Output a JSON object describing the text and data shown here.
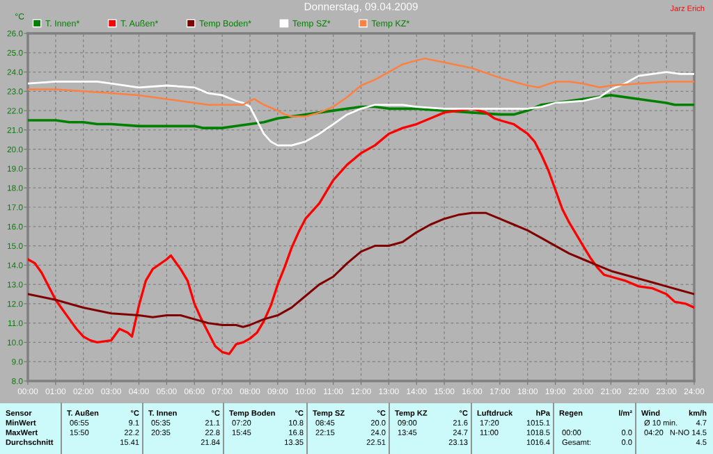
{
  "chart_data": {
    "type": "line",
    "title": "Donnerstag, 09.04.2009",
    "ylabel": "°C",
    "annotations": [
      "Jarz Erich",
      "Sensor",
      "MinWert",
      "MaxWert",
      "Durchschnitt",
      "T. Außen",
      "°C",
      "06:55",
      "9.1",
      "15:50",
      "22.2",
      "15.41",
      "T. Innen",
      "°C",
      "05:35",
      "21.1",
      "20:35",
      "22.8",
      "21.84",
      "Temp Boden",
      "°C",
      "07:20",
      "10.8",
      "15:45",
      "16.8",
      "13.35",
      "Temp SZ",
      "°C",
      "08:45",
      "20.0",
      "22:15",
      "24.0",
      "22.51",
      "Temp KZ",
      "°C",
      "09:00",
      "21.6",
      "13:45",
      "24.7",
      "23.13",
      "Luftdruck",
      "hPa",
      "17:20",
      "1015.1",
      "11:00",
      "1018.5",
      "1016.4",
      "Regen",
      "l/m²",
      "00:00",
      "0.0",
      "Gesamt:",
      "0.0",
      "Wind",
      "km/h",
      "Ø 10 min.",
      "4.7",
      "04:20",
      "N-NO 14.5",
      "4.5"
    ],
    "xlim": [
      0,
      24
    ],
    "xticks": [
      {
        "value": 0,
        "label": "00:00"
      },
      {
        "value": 1,
        "label": "01:00"
      },
      {
        "value": 2,
        "label": "02:00"
      },
      {
        "value": 3,
        "label": "03:00"
      },
      {
        "value": 4,
        "label": "04:00"
      },
      {
        "value": 5,
        "label": "05:00"
      },
      {
        "value": 6,
        "label": "06:00"
      },
      {
        "value": 7,
        "label": "07:00"
      },
      {
        "value": 8,
        "label": "08:00"
      },
      {
        "value": 9,
        "label": "09:00"
      },
      {
        "value": 10,
        "label": "10:00"
      },
      {
        "value": 11,
        "label": "11:00"
      },
      {
        "value": 12,
        "label": "12:00"
      },
      {
        "value": 13,
        "label": "13:00"
      },
      {
        "value": 14,
        "label": "14:00"
      },
      {
        "value": 15,
        "label": "15:00"
      },
      {
        "value": 16,
        "label": "16:00"
      },
      {
        "value": 17,
        "label": "17:00"
      },
      {
        "value": 18,
        "label": "18:00"
      },
      {
        "value": 19,
        "label": "19:00"
      },
      {
        "value": 20,
        "label": "20:00"
      },
      {
        "value": 21,
        "label": "21:00"
      },
      {
        "value": 22,
        "label": "22:00"
      },
      {
        "value": 23,
        "label": "23:00"
      },
      {
        "value": 24,
        "label": "24:00"
      }
    ],
    "ylim": [
      8,
      26
    ],
    "yticks": [
      {
        "value": 8,
        "label": "8.0"
      },
      {
        "value": 9,
        "label": "9.0"
      },
      {
        "value": 10,
        "label": "10.0"
      },
      {
        "value": 11,
        "label": "11.0"
      },
      {
        "value": 12,
        "label": "12.0"
      },
      {
        "value": 13,
        "label": "13.0"
      },
      {
        "value": 14,
        "label": "14.0"
      },
      {
        "value": 15,
        "label": "15.0"
      },
      {
        "value": 16,
        "label": "16.0"
      },
      {
        "value": 17,
        "label": "17.0"
      },
      {
        "value": 18,
        "label": "18.0"
      },
      {
        "value": 19,
        "label": "19.0"
      },
      {
        "value": 20,
        "label": "20.0"
      },
      {
        "value": 21,
        "label": "21.0"
      },
      {
        "value": 22,
        "label": "22.0"
      },
      {
        "value": 23,
        "label": "23.0"
      },
      {
        "value": 24,
        "label": "24.0"
      },
      {
        "value": 25,
        "label": "25.0"
      },
      {
        "value": 26,
        "label": "26.0"
      }
    ],
    "grid": true,
    "legend": "top",
    "line_style": "solid",
    "marker": "none",
    "series": [
      {
        "name": "T. Innen*",
        "color": "#008000",
        "x": [
          0,
          1,
          1.5,
          2,
          2.5,
          3,
          4,
          5,
          6,
          6.3,
          7,
          7.5,
          8,
          8.5,
          9,
          9.5,
          10,
          10.5,
          11,
          11.5,
          12,
          12.5,
          13,
          14,
          15,
          16,
          17,
          17.5,
          18,
          18.5,
          19,
          20,
          21,
          22,
          23,
          23.3,
          24
        ],
        "values": [
          21.5,
          21.5,
          21.4,
          21.4,
          21.3,
          21.3,
          21.2,
          21.2,
          21.2,
          21.1,
          21.1,
          21.2,
          21.3,
          21.4,
          21.6,
          21.7,
          21.8,
          21.9,
          22.0,
          22.1,
          22.2,
          22.2,
          22.1,
          22.1,
          22.0,
          21.9,
          21.8,
          21.8,
          22.0,
          22.3,
          22.4,
          22.6,
          22.8,
          22.6,
          22.4,
          22.3,
          22.3
        ]
      },
      {
        "name": "T. Außen*",
        "color": "#ff0000",
        "x": [
          0,
          0.25,
          0.5,
          0.75,
          1,
          1.25,
          1.5,
          1.75,
          2,
          2.25,
          2.5,
          3,
          3.3,
          3.6,
          3.75,
          4,
          4.25,
          4.5,
          5,
          5.15,
          5.5,
          5.75,
          6,
          6.25,
          6.5,
          6.75,
          7,
          7.25,
          7.5,
          7.75,
          8,
          8.25,
          8.5,
          8.75,
          9,
          9.25,
          9.5,
          9.75,
          10,
          10.5,
          11,
          11.5,
          12,
          12.5,
          13,
          13.5,
          14,
          14.5,
          15,
          15.5,
          16,
          16.5,
          16.8,
          17,
          17.5,
          18,
          18.25,
          18.5,
          18.75,
          19,
          19.25,
          19.5,
          19.75,
          20,
          20.25,
          20.5,
          20.75,
          21,
          21.5,
          22,
          22.5,
          23,
          23.3,
          23.7,
          24
        ],
        "values": [
          14.3,
          14.1,
          13.6,
          12.9,
          12.2,
          11.7,
          11.2,
          10.7,
          10.3,
          10.1,
          10.0,
          10.1,
          10.7,
          10.5,
          10.3,
          11.9,
          13.2,
          13.8,
          14.3,
          14.5,
          13.8,
          13.2,
          12.0,
          11.2,
          10.5,
          9.8,
          9.5,
          9.4,
          9.9,
          10.0,
          10.2,
          10.5,
          11.1,
          11.9,
          13.0,
          13.9,
          14.9,
          15.7,
          16.4,
          17.2,
          18.4,
          19.2,
          19.8,
          20.2,
          20.8,
          21.1,
          21.3,
          21.6,
          21.9,
          22.0,
          22.1,
          21.9,
          21.6,
          21.5,
          21.3,
          20.8,
          20.4,
          19.7,
          18.9,
          17.9,
          16.9,
          16.2,
          15.6,
          15.0,
          14.4,
          13.9,
          13.5,
          13.4,
          13.2,
          12.9,
          12.8,
          12.5,
          12.1,
          12.0,
          11.8
        ]
      },
      {
        "name": "Temp Boden*",
        "color": "#800000",
        "x": [
          0,
          1,
          2,
          3,
          4,
          4.5,
          5,
          5.5,
          6,
          6.5,
          7,
          7.5,
          7.75,
          8,
          8.5,
          9,
          9.5,
          10,
          10.5,
          11,
          11.5,
          12,
          12.5,
          13,
          13.5,
          14,
          14.5,
          15,
          15.5,
          16,
          16.5,
          17,
          17.5,
          18,
          18.5,
          19,
          19.5,
          20,
          20.5,
          21,
          21.5,
          22,
          22.5,
          23,
          23.5,
          24
        ],
        "values": [
          12.5,
          12.2,
          11.8,
          11.5,
          11.4,
          11.3,
          11.4,
          11.4,
          11.2,
          11.0,
          10.9,
          10.9,
          10.8,
          10.9,
          11.2,
          11.4,
          11.8,
          12.4,
          13.0,
          13.4,
          14.1,
          14.7,
          15.0,
          15.0,
          15.2,
          15.7,
          16.1,
          16.4,
          16.6,
          16.7,
          16.7,
          16.4,
          16.1,
          15.8,
          15.4,
          15.0,
          14.6,
          14.3,
          14.0,
          13.7,
          13.5,
          13.3,
          13.1,
          12.9,
          12.7,
          12.5
        ]
      },
      {
        "name": "Temp SZ*",
        "color": "#ffffff",
        "x": [
          0,
          1,
          2,
          2.5,
          3,
          4,
          5,
          6,
          6.5,
          7,
          7.5,
          7.75,
          8,
          8.25,
          8.5,
          8.75,
          9,
          9.5,
          10,
          10.5,
          11,
          11.5,
          12,
          12.5,
          13,
          13.5,
          14,
          15,
          16,
          17,
          17.5,
          18,
          18.5,
          19,
          20,
          20.6,
          21,
          21.5,
          22,
          22.5,
          23,
          23.5,
          24
        ],
        "values": [
          23.4,
          23.5,
          23.5,
          23.5,
          23.4,
          23.2,
          23.3,
          23.2,
          22.9,
          22.8,
          22.5,
          22.4,
          22.2,
          21.5,
          20.8,
          20.4,
          20.2,
          20.2,
          20.4,
          20.8,
          21.3,
          21.8,
          22.1,
          22.3,
          22.3,
          22.3,
          22.2,
          22.1,
          22.1,
          22.1,
          22.1,
          22.1,
          22.2,
          22.4,
          22.5,
          22.7,
          23.1,
          23.4,
          23.8,
          23.9,
          24.0,
          23.9,
          23.9
        ]
      },
      {
        "name": "Temp KZ*",
        "color": "#ff8040",
        "x": [
          0,
          1,
          2,
          3,
          4,
          5,
          6,
          6.5,
          7,
          7.75,
          8,
          8.15,
          8.5,
          9,
          9.25,
          9.5,
          10,
          10.5,
          11,
          11.5,
          12,
          12.5,
          13,
          13.5,
          14,
          14.3,
          15,
          16,
          17,
          17.5,
          18,
          18.4,
          19,
          19.5,
          20,
          20.6,
          21,
          22,
          23,
          23.3,
          24
        ],
        "values": [
          23.1,
          23.1,
          23.0,
          22.9,
          22.8,
          22.6,
          22.4,
          22.3,
          22.3,
          22.3,
          22.5,
          22.6,
          22.3,
          22.0,
          21.8,
          21.7,
          21.7,
          21.9,
          22.2,
          22.7,
          23.3,
          23.6,
          24.0,
          24.4,
          24.6,
          24.7,
          24.5,
          24.2,
          23.7,
          23.5,
          23.3,
          23.2,
          23.5,
          23.5,
          23.4,
          23.2,
          23.3,
          23.4,
          23.5,
          23.5,
          23.5
        ]
      }
    ]
  }
}
